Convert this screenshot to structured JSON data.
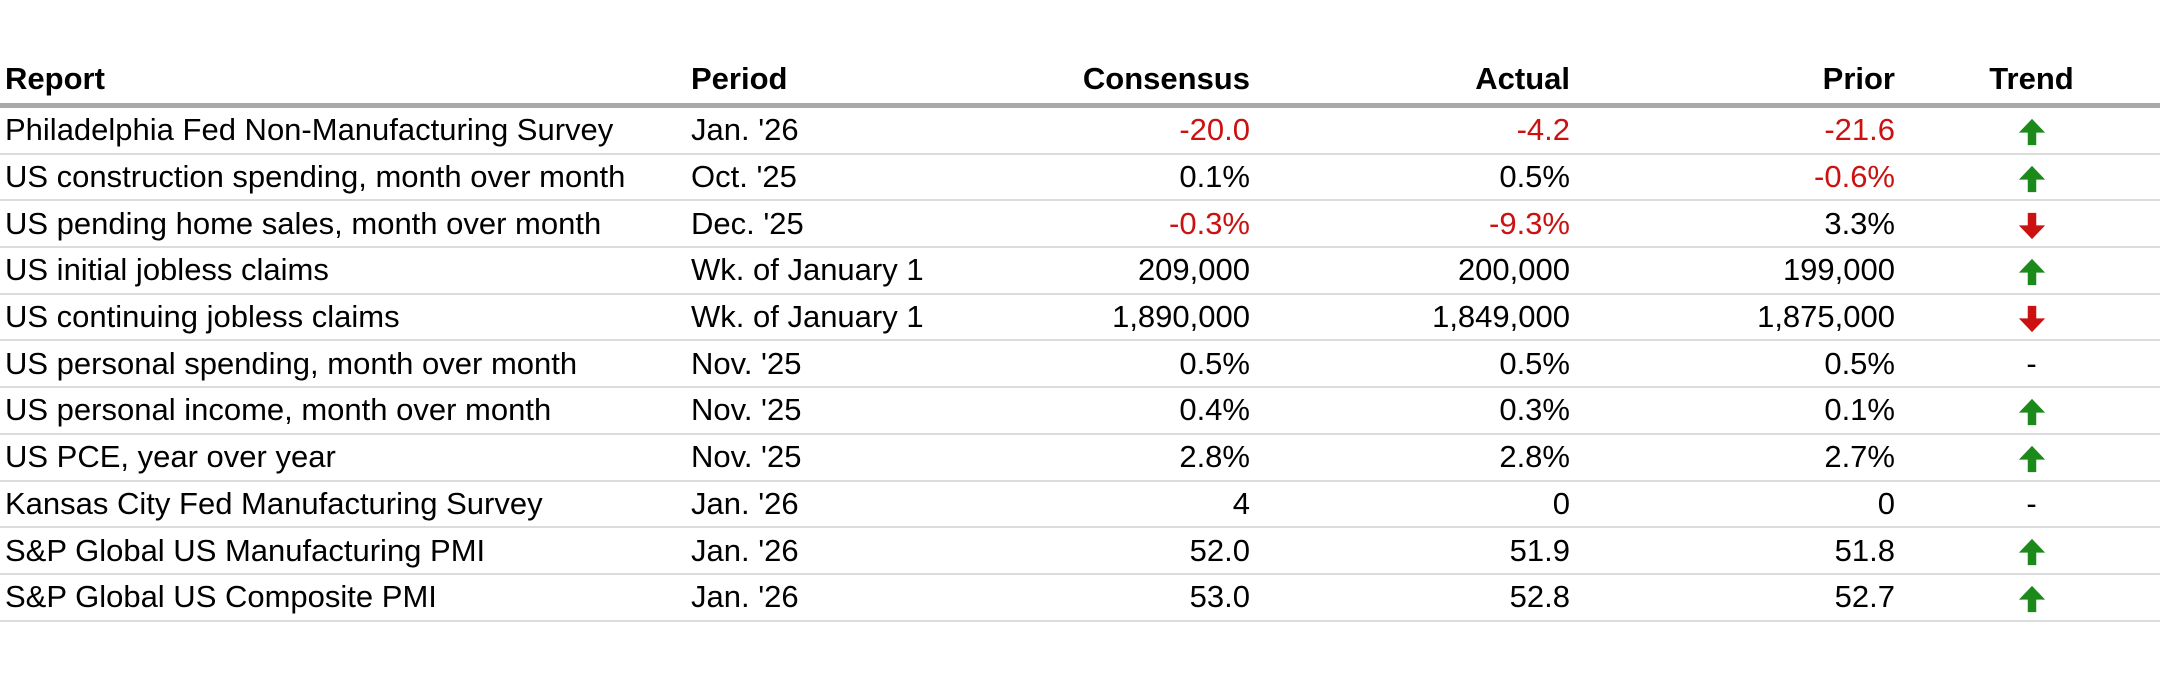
{
  "colors": {
    "negative_value_red": "#cc1111",
    "trend_up_green": "#1b8a1b",
    "trend_down_red": "#cc1111",
    "header_rule_gray": "#a9a9a9",
    "row_rule_gray": "#dcdcdc"
  },
  "chart_data": {
    "type": "table",
    "columns": [
      "Report",
      "Period",
      "Consensus",
      "Actual",
      "Prior",
      "Trend"
    ],
    "rows": [
      {
        "report": "Philadelphia Fed Non-Manufacturing Survey",
        "period": "Jan. '26",
        "consensus": "-20.0",
        "actual": "-4.2",
        "prior": "-21.6",
        "trend": "up"
      },
      {
        "report": "US construction spending, month over month",
        "period": "Oct. '25",
        "consensus": "0.1%",
        "actual": "0.5%",
        "prior": "-0.6%",
        "trend": "up"
      },
      {
        "report": "US pending home sales, month over month",
        "period": "Dec. '25",
        "consensus": "-0.3%",
        "actual": "-9.3%",
        "prior": "3.3%",
        "trend": "down"
      },
      {
        "report": "US initial jobless claims",
        "period": "Wk. of January 1",
        "consensus": "209,000",
        "actual": "200,000",
        "prior": "199,000",
        "trend": "up"
      },
      {
        "report": "US continuing jobless claims",
        "period": "Wk. of January 1",
        "consensus": "1,890,000",
        "actual": "1,849,000",
        "prior": "1,875,000",
        "trend": "down"
      },
      {
        "report": "US personal spending, month over month",
        "period": "Nov. '25",
        "consensus": "0.5%",
        "actual": "0.5%",
        "prior": "0.5%",
        "trend": "-"
      },
      {
        "report": "US personal income, month over month",
        "period": "Nov. '25",
        "consensus": "0.4%",
        "actual": "0.3%",
        "prior": "0.1%",
        "trend": "up"
      },
      {
        "report": "US PCE, year over year",
        "period": "Nov. '25",
        "consensus": "2.8%",
        "actual": "2.8%",
        "prior": "2.7%",
        "trend": "up"
      },
      {
        "report": "Kansas City Fed Manufacturing Survey",
        "period": "Jan. '26",
        "consensus": "4",
        "actual": "0",
        "prior": "0",
        "trend": "-"
      },
      {
        "report": "S&P Global US Manufacturing PMI",
        "period": "Jan. '26",
        "consensus": "52.0",
        "actual": "51.9",
        "prior": "51.8",
        "trend": "up"
      },
      {
        "report": "S&P Global US Composite PMI",
        "period": "Jan. '26",
        "consensus": "53.0",
        "actual": "52.8",
        "prior": "52.7",
        "trend": "up"
      }
    ]
  }
}
